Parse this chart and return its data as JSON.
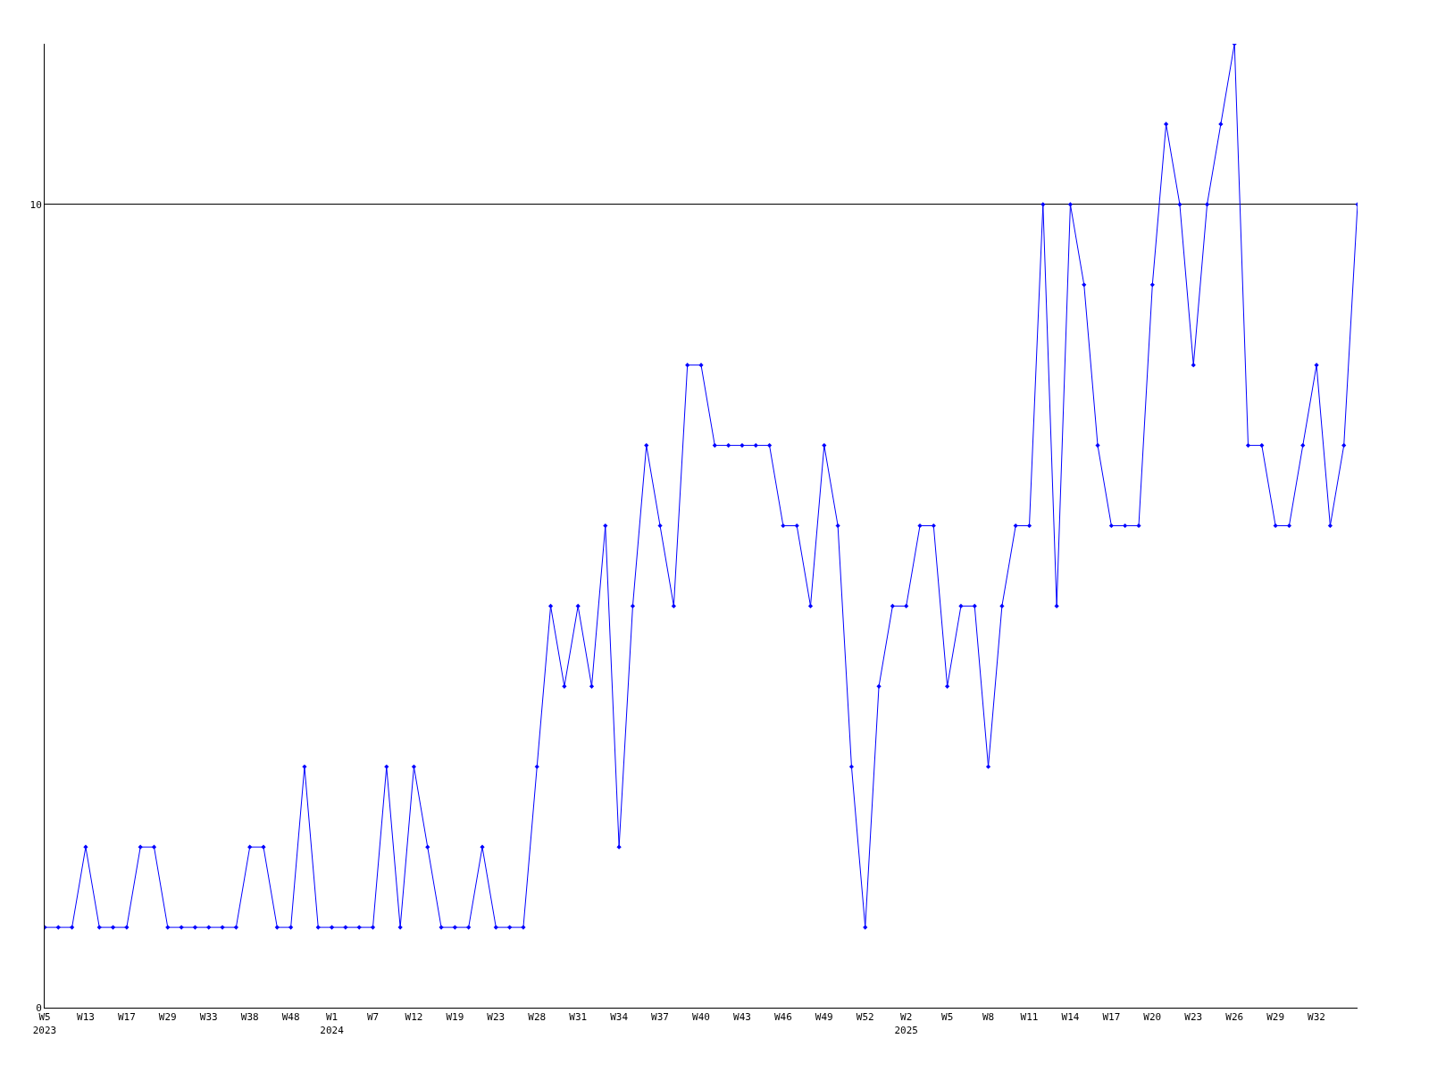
{
  "chart_data": {
    "type": "line",
    "categories": [
      "W5\n2023",
      null,
      null,
      "W13",
      null,
      null,
      "W17",
      null,
      null,
      "W29",
      null,
      null,
      "W33",
      null,
      null,
      "W38",
      null,
      null,
      "W48",
      null,
      null,
      "W1\n2024",
      null,
      null,
      "W7",
      null,
      null,
      "W12",
      null,
      null,
      "W19",
      null,
      null,
      "W23",
      null,
      null,
      "W28",
      null,
      null,
      "W31",
      null,
      null,
      "W34",
      null,
      null,
      "W37",
      null,
      null,
      "W40",
      null,
      null,
      "W43",
      null,
      null,
      "W46",
      null,
      null,
      "W49",
      null,
      null,
      "W52",
      null,
      null,
      "W2\n2025",
      null,
      null,
      "W5",
      null,
      null,
      "W8",
      null,
      null,
      "W11",
      null,
      null,
      "W14",
      null,
      null,
      "W17",
      null,
      null,
      "W20",
      null,
      null,
      "W23",
      null,
      null,
      "W26",
      null,
      null,
      "W29",
      null,
      null,
      "W32",
      null,
      null,
      null
    ],
    "series": [
      {
        "color": "#0000ff",
        "values": [
          1,
          1,
          1,
          2,
          1,
          1,
          1,
          2,
          2,
          1,
          1,
          1,
          1,
          1,
          1,
          2,
          2,
          1,
          1,
          3,
          1,
          1,
          1,
          1,
          1,
          3,
          1,
          3,
          2,
          1,
          1,
          1,
          2,
          1,
          1,
          1,
          3,
          5,
          4,
          5,
          4,
          6,
          2,
          5,
          7,
          6,
          5,
          8,
          8,
          7,
          7,
          7,
          7,
          7,
          6,
          6,
          5,
          7,
          6,
          3,
          1,
          4,
          5,
          5,
          6,
          6,
          4,
          5,
          5,
          3,
          5,
          6,
          6,
          10,
          5,
          10,
          9,
          7,
          6,
          6,
          6,
          9,
          11,
          10,
          8,
          10,
          11,
          12,
          7,
          7,
          6,
          6,
          7,
          8,
          6,
          7,
          10
        ]
      }
    ],
    "ylim": [
      0,
      12
    ],
    "yticks": [
      0,
      10
    ],
    "grid": "y",
    "marker": "diamond",
    "line_style": "solid",
    "legend": false
  }
}
